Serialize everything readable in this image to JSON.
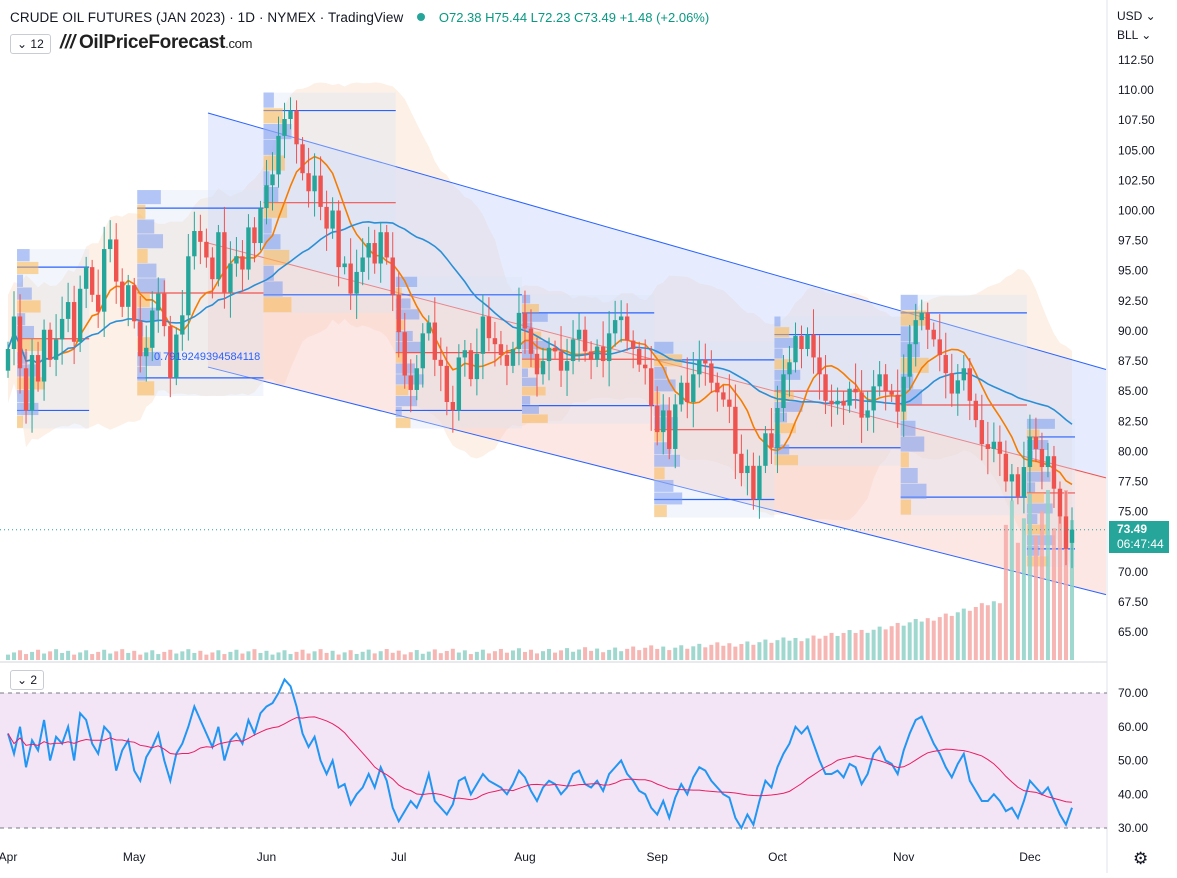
{
  "header": {
    "symbol": "CRUDE OIL FUTURES (JAN 2023) · 1D · NYMEX · TradingView",
    "ohlc": "O72.38 H75.44 L72.23 C73.49 +1.48 (+2.06%)",
    "collapse_label": "⌄ 12"
  },
  "logo": {
    "bars": "///",
    "name": "OilPriceForecast",
    "suffix": ".com"
  },
  "currency": {
    "top": "USD ⌄",
    "unit": "BLL ⌄"
  },
  "price_tag": {
    "price": "73.49",
    "countdown": "06:47:44"
  },
  "fib_label": "0.7919249394584118",
  "rsi_pane": {
    "collapse_label": "⌄ 2"
  },
  "icons": {
    "settings": "gear-icon"
  },
  "colors": {
    "up": "#26a69a",
    "down": "#ef5350",
    "rsi": "#2196f3",
    "rsi_ma": "#e91e63",
    "ma_fast": "#f57c00",
    "ma_slow": "#2b8fd6",
    "channel": "#2962ff",
    "bg_rsi": "#f3e5f5"
  },
  "chart_data": [
    {
      "type": "candlestick",
      "title": "CRUDE OIL FUTURES (JAN 2023)",
      "interval": "1D",
      "y_range": [
        62.5,
        113.75
      ],
      "y_ticks": [
        "112.50",
        "110.00",
        "107.50",
        "105.00",
        "102.50",
        "100.00",
        "97.50",
        "95.00",
        "92.50",
        "90.00",
        "87.50",
        "85.00",
        "82.50",
        "80.00",
        "77.50",
        "75.00",
        "72.50",
        "70.00",
        "67.50",
        "65.00"
      ],
      "x_ticks": [
        {
          "label": "Apr",
          "day": 0
        },
        {
          "label": "May",
          "day": 21
        },
        {
          "label": "Jun",
          "day": 43
        },
        {
          "label": "Jul",
          "day": 65
        },
        {
          "label": "Aug",
          "day": 86
        },
        {
          "label": "Sep",
          "day": 108
        },
        {
          "label": "Oct",
          "day": 128
        },
        {
          "label": "Nov",
          "day": 149
        },
        {
          "label": "Dec",
          "day": 170
        }
      ],
      "close": [
        88.5,
        91.2,
        86.9,
        83.4,
        88.0,
        85.8,
        90.1,
        87.6,
        89.3,
        91.0,
        92.4,
        89.1,
        93.5,
        95.3,
        93.0,
        91.6,
        96.8,
        97.6,
        94.1,
        92.0,
        93.8,
        90.8,
        87.9,
        88.6,
        91.7,
        93.1,
        90.4,
        86.1,
        89.7,
        91.3,
        96.2,
        98.3,
        97.4,
        96.1,
        94.3,
        98.2,
        93.2,
        95.6,
        96.2,
        95.1,
        98.6,
        97.3,
        100.2,
        102.1,
        103.0,
        106.2,
        107.6,
        108.3,
        105.5,
        103.1,
        101.6,
        102.9,
        100.3,
        98.5,
        100.0,
        95.3,
        95.6,
        93.1,
        94.9,
        96.1,
        97.3,
        95.6,
        98.2,
        96.1,
        93.0,
        89.9,
        86.3,
        85.1,
        86.9,
        89.8,
        90.7,
        87.6,
        87.1,
        84.1,
        83.4,
        87.8,
        88.4,
        86.0,
        88.1,
        91.2,
        89.4,
        88.9,
        88.0,
        87.1,
        88.5,
        91.5,
        90.2,
        88.1,
        86.4,
        87.5,
        88.6,
        88.3,
        86.7,
        87.5,
        89.3,
        90.1,
        88.3,
        87.6,
        88.7,
        87.5,
        89.8,
        90.9,
        91.2,
        89.2,
        88.5,
        87.2,
        86.9,
        83.8,
        81.6,
        83.4,
        80.2,
        83.9,
        85.7,
        84.1,
        86.4,
        87.6,
        87.3,
        85.7,
        84.9,
        84.3,
        83.7,
        79.8,
        78.2,
        78.8,
        76.0,
        78.8,
        81.5,
        80.3,
        83.6,
        86.4,
        87.4,
        89.6,
        88.5,
        89.7,
        87.8,
        86.4,
        84.2,
        83.9,
        84.2,
        83.8,
        85.2,
        84.9,
        82.8,
        83.4,
        85.4,
        86.4,
        85.0,
        84.7,
        83.3,
        86.2,
        88.9,
        90.9,
        91.5,
        90.1,
        89.3,
        88.0,
        86.5,
        84.8,
        85.9,
        86.9,
        84.2,
        82.6,
        80.6,
        80.2,
        80.8,
        79.8,
        77.5,
        78.1,
        76.2,
        78.7,
        81.2,
        80.2,
        78.7,
        79.6,
        76.9,
        74.6,
        71.9,
        73.5
      ],
      "open": [
        86.7,
        88.5,
        91.2,
        86.9,
        83.4,
        88.0,
        85.8,
        90.1,
        87.6,
        89.3,
        91.0,
        92.4,
        89.1,
        93.5,
        95.3,
        93.0,
        91.6,
        96.8,
        97.6,
        94.1,
        92.0,
        93.8,
        90.8,
        87.9,
        88.6,
        91.7,
        93.1,
        90.4,
        86.1,
        89.7,
        91.3,
        96.2,
        98.3,
        97.4,
        96.1,
        94.3,
        98.2,
        93.2,
        95.6,
        96.2,
        95.1,
        98.6,
        97.3,
        100.2,
        102.1,
        103.0,
        106.2,
        107.6,
        108.3,
        105.5,
        103.1,
        101.6,
        102.9,
        100.3,
        98.5,
        100.0,
        95.3,
        95.6,
        93.1,
        94.9,
        96.1,
        97.3,
        95.6,
        98.2,
        96.1,
        93.0,
        89.9,
        86.3,
        85.1,
        86.9,
        89.8,
        90.7,
        87.6,
        87.1,
        84.1,
        83.4,
        87.8,
        88.4,
        86.0,
        88.1,
        91.2,
        89.4,
        88.9,
        88.0,
        87.1,
        88.5,
        91.5,
        90.2,
        88.1,
        86.4,
        87.5,
        88.6,
        88.3,
        86.7,
        87.5,
        89.3,
        90.1,
        88.3,
        87.6,
        88.7,
        87.5,
        89.8,
        90.9,
        91.2,
        89.2,
        88.5,
        87.2,
        86.9,
        83.8,
        81.6,
        83.4,
        80.2,
        83.9,
        85.7,
        84.1,
        86.4,
        87.6,
        87.3,
        85.7,
        84.9,
        84.3,
        83.7,
        79.8,
        78.2,
        78.8,
        76.0,
        78.8,
        81.5,
        80.3,
        83.6,
        86.4,
        87.4,
        89.6,
        88.5,
        89.7,
        87.8,
        86.4,
        84.2,
        83.9,
        84.2,
        83.8,
        85.2,
        84.9,
        82.8,
        83.4,
        85.4,
        86.4,
        85.0,
        84.7,
        83.3,
        86.2,
        88.9,
        90.9,
        91.5,
        90.1,
        89.3,
        88.0,
        86.5,
        84.8,
        85.9,
        86.9,
        84.2,
        82.6,
        80.6,
        80.2,
        80.8,
        79.8,
        77.5,
        78.1,
        76.2,
        78.7,
        81.2,
        80.2,
        78.7,
        79.6,
        76.9,
        74.6,
        72.4
      ],
      "last": {
        "open": 72.38,
        "high": 75.44,
        "low": 72.23,
        "close": 73.49,
        "change": 1.48,
        "change_pct": 2.06
      }
    },
    {
      "type": "line",
      "title": "RSI",
      "y_range": [
        30,
        70
      ],
      "y_ticks": [
        "70.00",
        "60.00",
        "50.00",
        "40.00",
        "30.00"
      ],
      "series": [
        {
          "values": [
            58,
            52,
            60,
            48,
            56,
            53,
            62,
            50,
            57,
            55,
            60,
            50,
            64,
            62,
            55,
            52,
            60,
            58,
            47,
            53,
            56,
            47,
            44,
            51,
            54,
            58,
            50,
            44,
            52,
            55,
            60,
            66,
            62,
            58,
            54,
            60,
            50,
            56,
            58,
            55,
            62,
            58,
            64,
            66,
            67,
            70,
            74,
            72,
            66,
            58,
            54,
            57,
            50,
            46,
            50,
            42,
            43,
            37,
            40,
            42,
            46,
            42,
            48,
            44,
            36,
            32,
            35,
            38,
            36,
            40,
            46,
            38,
            36,
            34,
            37,
            44,
            45,
            40,
            43,
            46,
            44,
            43,
            42,
            40,
            43,
            47,
            45,
            41,
            38,
            42,
            44,
            43,
            40,
            42,
            46,
            47,
            43,
            42,
            44,
            41,
            46,
            48,
            50,
            46,
            44,
            41,
            40,
            36,
            34,
            38,
            33,
            39,
            43,
            40,
            45,
            48,
            47,
            44,
            42,
            40,
            39,
            33,
            30,
            34,
            31,
            38,
            44,
            42,
            48,
            52,
            55,
            60,
            58,
            60,
            55,
            50,
            46,
            46,
            47,
            45,
            49,
            48,
            43,
            46,
            52,
            54,
            50,
            49,
            46,
            53,
            58,
            62,
            63,
            59,
            55,
            52,
            48,
            45,
            49,
            52,
            44,
            41,
            38,
            38,
            40,
            38,
            35,
            36,
            33,
            38,
            44,
            42,
            40,
            42,
            38,
            34,
            31,
            36
          ]
        }
      ]
    }
  ]
}
